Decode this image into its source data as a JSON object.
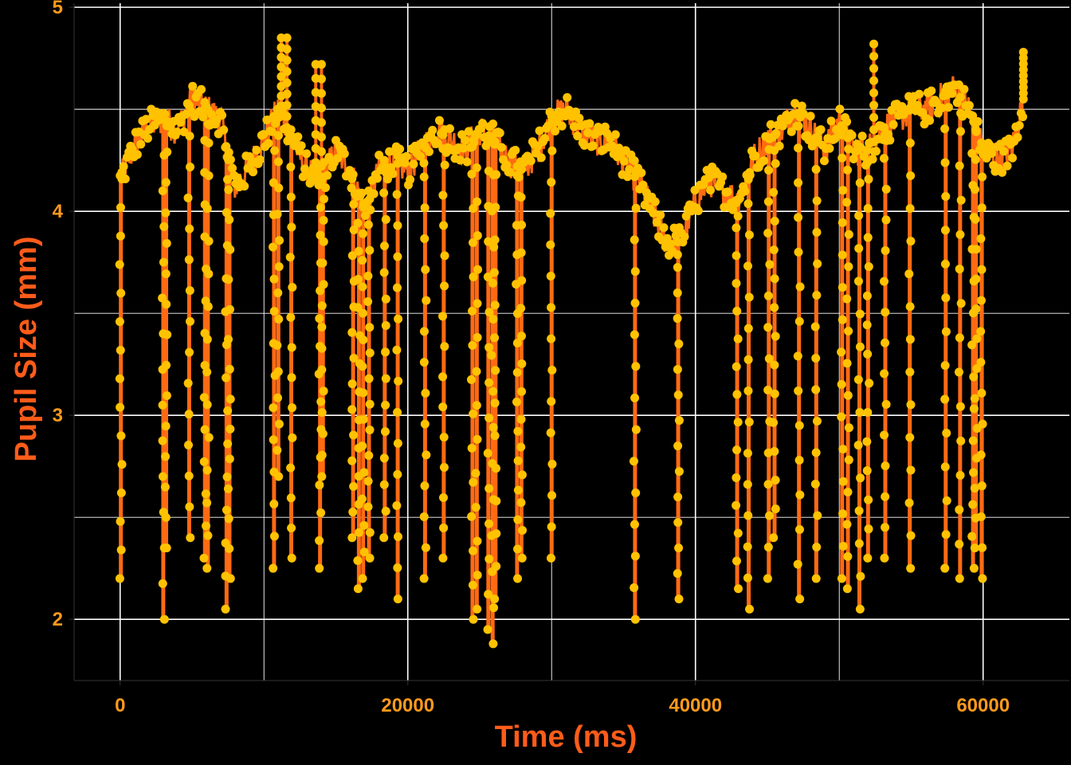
{
  "chart_data": {
    "type": "line",
    "title": "",
    "xlabel": "Time (ms)",
    "ylabel": "Pupil Size (mm)",
    "xlim": [
      -3200,
      66000
    ],
    "ylim": [
      1.7,
      5.02
    ],
    "xticks": [
      0,
      20000,
      40000,
      60000
    ],
    "xtick_labels": [
      "0",
      "20000",
      "40000",
      "60000"
    ],
    "yticks": [
      2,
      3,
      4,
      5
    ],
    "ytick_labels": [
      "2",
      "3",
      "4",
      "5"
    ],
    "grid": true,
    "legend": "none",
    "series": [
      {
        "markers": true,
        "baseline_x": [
          0,
          1000,
          2000,
          3000,
          4000,
          5000,
          6000,
          7000,
          8000,
          9000,
          10000,
          11000,
          12000,
          13000,
          14000,
          15000,
          16000,
          17000,
          18000,
          19000,
          20000,
          21000,
          22000,
          23000,
          24000,
          25000,
          26000,
          27000,
          28000,
          29000,
          30000,
          31000,
          32000,
          33000,
          34000,
          35000,
          36000,
          37000,
          38000,
          39000,
          40000,
          41000,
          42000,
          43000,
          44000,
          45000,
          46000,
          47000,
          48000,
          49000,
          50000,
          51000,
          52000,
          53000,
          54000,
          55000,
          56000,
          57000,
          58000,
          59000,
          60000,
          61000,
          62000,
          62800
        ],
        "baseline_y": [
          4.15,
          4.32,
          4.42,
          4.45,
          4.4,
          4.55,
          4.5,
          4.45,
          4.12,
          4.22,
          4.35,
          4.5,
          4.35,
          4.2,
          4.15,
          4.3,
          4.2,
          4.0,
          4.2,
          4.25,
          4.2,
          4.3,
          4.4,
          4.35,
          4.3,
          4.4,
          4.35,
          4.25,
          4.2,
          4.3,
          4.45,
          4.5,
          4.4,
          4.35,
          4.35,
          4.25,
          4.15,
          4.0,
          3.85,
          3.85,
          4.05,
          4.15,
          4.1,
          4.05,
          4.25,
          4.35,
          4.4,
          4.5,
          4.4,
          4.3,
          4.45,
          4.3,
          4.3,
          4.4,
          4.45,
          4.5,
          4.5,
          4.55,
          4.6,
          4.5,
          4.3,
          4.25,
          4.3,
          4.55
        ],
        "peaks_x": [
          11200,
          11600,
          13600,
          14000,
          52400,
          62800
        ],
        "peaks_y": [
          4.85,
          4.85,
          4.72,
          4.72,
          4.82,
          4.78
        ],
        "dips_x": [
          50,
          3000,
          3200,
          4800,
          5900,
          6100,
          7400,
          7600,
          10700,
          11000,
          11900,
          13900,
          14100,
          16200,
          16600,
          16900,
          17300,
          18400,
          19300,
          21200,
          22500,
          24500,
          24800,
          25600,
          25900,
          26100,
          27600,
          27900,
          30000,
          35800,
          38800,
          42900,
          43700,
          45100,
          45500,
          47200,
          48400,
          50200,
          50600,
          51400,
          52000,
          53200,
          54900,
          57400,
          58400,
          59300,
          59500,
          59900
        ],
        "dips_y": [
          2.2,
          2.0,
          2.35,
          2.4,
          2.3,
          2.25,
          2.05,
          2.2,
          2.25,
          2.7,
          2.3,
          2.25,
          2.7,
          2.4,
          2.15,
          2.2,
          2.3,
          2.4,
          2.1,
          2.2,
          2.3,
          2.0,
          2.05,
          1.95,
          1.88,
          2.1,
          2.2,
          2.3,
          2.3,
          2.0,
          2.1,
          2.15,
          2.05,
          2.2,
          2.4,
          2.1,
          2.2,
          2.2,
          2.15,
          2.05,
          2.3,
          2.3,
          2.25,
          2.25,
          2.2,
          2.25,
          2.35,
          2.2
        ]
      }
    ],
    "colors": {
      "background": "#000000",
      "grid": "#ffffff",
      "line": "#ff6a13",
      "marker": "#ffc200",
      "tick_label": "#ff9a1c",
      "axis_title": "#ff5c1a"
    }
  }
}
